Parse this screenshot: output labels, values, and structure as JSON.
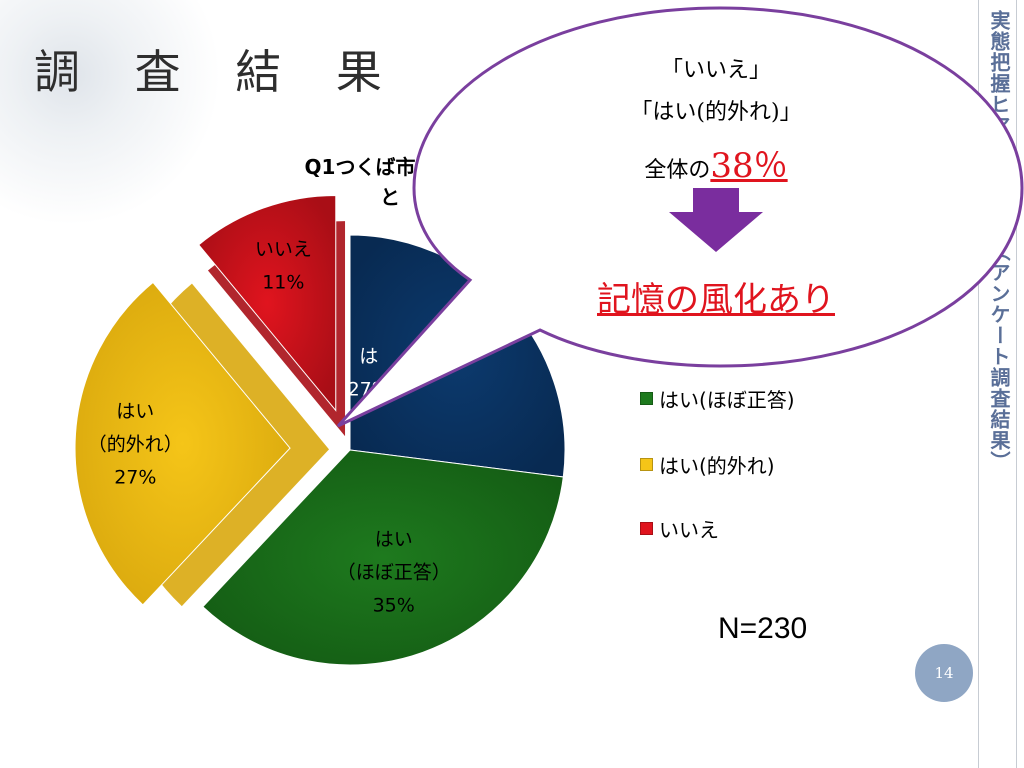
{
  "slide": {
    "title": "調 査 結 果",
    "side_label": "実態把握ヒアリング調査（アンケート調査結果）",
    "page_number": "14",
    "sample_size": "N=230"
  },
  "callout": {
    "line1": "「いいえ」",
    "line2": "「はい(的外れ)」",
    "line3_prefix": "全体の",
    "line3_value": "38％",
    "conclusion": "記憶の風化あり"
  },
  "chart_data": {
    "type": "pie",
    "title_line1": "Q1つくば市の",
    "title_line2": "と",
    "slices": [
      {
        "label": "はい(正答)",
        "value": 27,
        "percent_label": "27%",
        "color": "#0c3a6e"
      },
      {
        "label": "はい(ほぼ正答)",
        "value": 35,
        "percent_label": "35%",
        "color": "#1e7a1e"
      },
      {
        "label": "はい(的外れ)",
        "value": 27,
        "percent_label": "27%",
        "color": "#f5c518"
      },
      {
        "label": "いいえ",
        "value": 11,
        "percent_label": "11%",
        "color": "#e0141e"
      }
    ],
    "slice_labels": {
      "navy": [
        "は",
        "27%"
      ],
      "green": [
        "はい",
        "（ほぼ正答）",
        "35%"
      ],
      "yellow": [
        "はい",
        "（的外れ）",
        "27%"
      ],
      "red": [
        "いいえ",
        "11%"
      ]
    },
    "legend": [
      {
        "label": "はい(ほぼ正答)",
        "color": "#1e7a1e"
      },
      {
        "label": "はい(的外れ)",
        "color": "#f5c518"
      },
      {
        "label": "いいえ",
        "color": "#e0141e"
      }
    ],
    "legend_placement": "right"
  }
}
